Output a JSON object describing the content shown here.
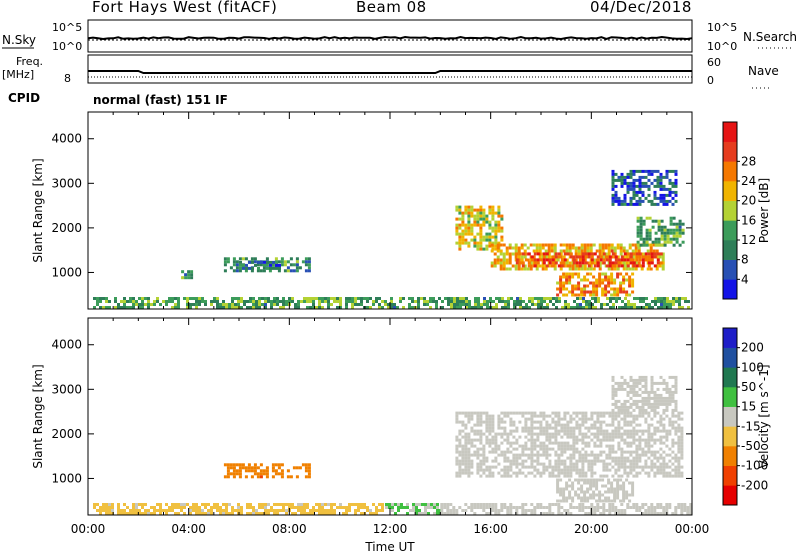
{
  "header": {
    "title": "Fort Hays West (fitACF)",
    "beam": "Beam 08",
    "date": "04/Dec/2018"
  },
  "top_panels": {
    "nsky_label": "N.Sky",
    "nsearch_label": "N.Search",
    "nsky_ticks": [
      "10^5",
      "10^0"
    ],
    "nsearch_ticks": [
      "10^5",
      "10^0"
    ],
    "freq_label": "Freq.",
    "freq_unit": "[MHz]",
    "freq_ticks": [
      "8"
    ],
    "nave_label": "Nave",
    "nave_ticks": [
      "60",
      "0"
    ],
    "cpid_label": "CPID",
    "cpid_text": "normal (fast) 151 IF"
  },
  "colors": {
    "power": [
      "#1414e6",
      "#2850b4",
      "#2e7e58",
      "#3c9c5a",
      "#b4d234",
      "#f0b400",
      "#f57800",
      "#e63c1e",
      "#e61414"
    ],
    "velocity": [
      "#e60000",
      "#f04000",
      "#f08000",
      "#f0c040",
      "#c8c8c0",
      "#40c040",
      "#207850",
      "#2050a0",
      "#1e1ec8"
    ]
  },
  "chart_data": [
    {
      "type": "heatmap",
      "parameter": "Power",
      "ylabel": "Slant Range [km]",
      "yticks": [
        1000,
        2000,
        3000,
        4000
      ],
      "ylim": [
        180,
        4600
      ],
      "xlim": [
        0,
        24
      ],
      "colorbar_label": "Power [dB]",
      "colorbar_ticks": [
        "4",
        "8",
        "12",
        "16",
        "20",
        "24",
        "28"
      ],
      "colorbar_range": [
        0,
        32
      ],
      "regions": [
        {
          "t0": 0.2,
          "t1": 23.9,
          "r0": 200,
          "r1": 450,
          "value": 12
        },
        {
          "t0": 3.7,
          "t1": 4.1,
          "r0": 850,
          "r1": 1050,
          "value": 10
        },
        {
          "t0": 5.4,
          "t1": 8.8,
          "r0": 1030,
          "r1": 1340,
          "value": 10
        },
        {
          "t0": 6.0,
          "t1": 7.6,
          "r0": 1100,
          "r1": 1260,
          "value": 8
        },
        {
          "t0": 14.6,
          "t1": 16.4,
          "r0": 1500,
          "r1": 2500,
          "value": 18
        },
        {
          "t0": 16.0,
          "t1": 22.8,
          "r0": 1050,
          "r1": 1650,
          "value": 20
        },
        {
          "t0": 17.0,
          "t1": 22.8,
          "r0": 1150,
          "r1": 1450,
          "value": 27
        },
        {
          "t0": 18.6,
          "t1": 21.6,
          "r0": 500,
          "r1": 1000,
          "value": 22
        },
        {
          "t0": 21.8,
          "t1": 23.6,
          "r0": 1600,
          "r1": 2250,
          "value": 12
        },
        {
          "t0": 20.8,
          "t1": 23.4,
          "r0": 2500,
          "r1": 3300,
          "value": 6
        }
      ]
    },
    {
      "type": "heatmap",
      "parameter": "Velocity",
      "ylabel": "Slant Range [km]",
      "yticks": [
        1000,
        2000,
        3000,
        4000
      ],
      "ylim": [
        180,
        4600
      ],
      "xlim": [
        0,
        24
      ],
      "xlabel": "Time UT",
      "xticks": [
        "00:00",
        "04:00",
        "08:00",
        "12:00",
        "16:00",
        "20:00",
        "00:00"
      ],
      "colorbar_label": "Velocity [m s^-1]",
      "colorbar_ticks": [
        "-200",
        "-100",
        "-50",
        "-15",
        "15",
        "50",
        "100",
        "200"
      ],
      "colorbar_range": [
        -250,
        250
      ],
      "regions": [
        {
          "t0": 0.2,
          "t1": 11.8,
          "r0": 200,
          "r1": 450,
          "value": -45
        },
        {
          "t0": 11.8,
          "t1": 14.0,
          "r0": 200,
          "r1": 450,
          "value": 30
        },
        {
          "t0": 14.0,
          "t1": 23.9,
          "r0": 200,
          "r1": 450,
          "value": 0
        },
        {
          "t0": 5.4,
          "t1": 8.8,
          "r0": 1030,
          "r1": 1340,
          "value": -120
        },
        {
          "t0": 14.6,
          "t1": 23.6,
          "r0": 1050,
          "r1": 2500,
          "value": 0
        },
        {
          "t0": 18.6,
          "t1": 21.6,
          "r0": 500,
          "r1": 1000,
          "value": 0
        },
        {
          "t0": 20.8,
          "t1": 23.4,
          "r0": 2500,
          "r1": 3300,
          "value": 0
        }
      ]
    }
  ]
}
